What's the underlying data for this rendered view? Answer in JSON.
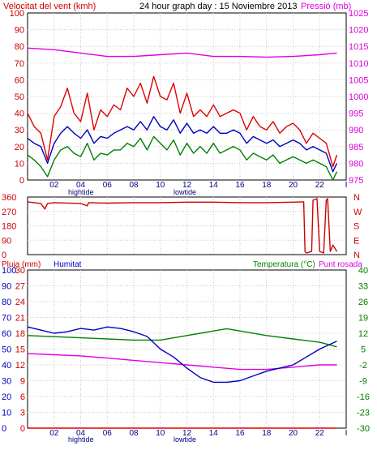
{
  "header": {
    "left_title": "Velocitat del vent (kmh)",
    "center_title": "24 hour graph day : 15 Noviembre 2013",
    "right_title": "Pressió (mb)"
  },
  "labels": {
    "hightide": "hightide",
    "lowtide": "lowtide",
    "pluja": "Pluja (mm)",
    "humitat": "Humitat",
    "temperatura": "Temperatura (°C)",
    "punt_rosada": "Punt rosada"
  },
  "colors": {
    "wind_gust": "#e00000",
    "wind_avg": "#0000c0",
    "wind_min": "#008000",
    "pressure": "#e000e0",
    "direction": "#cc0000",
    "temperature": "#008000",
    "dewpoint": "#e000e0",
    "humidity": "#0000c0",
    "rain": "#e00000",
    "axis_red": "#cc0000",
    "axis_blue": "#0000c0",
    "axis_green": "#008000"
  },
  "chart_data": [
    {
      "type": "line",
      "x_ticks": [
        "02",
        "04",
        "06",
        "08",
        "10",
        "12",
        "14",
        "16",
        "18",
        "20",
        "22",
        "I"
      ],
      "y_left_ticks": [
        0,
        10,
        20,
        30,
        40,
        50,
        60,
        70,
        80,
        90,
        100
      ],
      "y_right_ticks": [
        975,
        980,
        985,
        990,
        995,
        1000,
        1005,
        1010,
        1015,
        1020,
        1025
      ],
      "ylim_left": [
        0,
        100
      ],
      "ylim_right": [
        975,
        1025
      ],
      "series": [
        {
          "name": "Velocitat del vent",
          "axis": "left",
          "color_key": "wind_gust",
          "x": [
            0.0,
            0.5,
            1.0,
            1.5,
            2.0,
            2.5,
            3.0,
            3.5,
            4.0,
            4.5,
            5.0,
            5.5,
            6.0,
            6.5,
            7.0,
            7.5,
            8.0,
            8.5,
            9.0,
            9.5,
            10.0,
            10.5,
            11.0,
            11.5,
            12.0,
            12.5,
            13.0,
            13.5,
            14.0,
            14.5,
            15.0,
            15.5,
            16.0,
            16.5,
            17.0,
            17.5,
            18.0,
            18.5,
            19.0,
            19.5,
            20.0,
            20.5,
            21.0,
            21.5,
            22.0,
            22.5,
            23.0,
            23.3
          ],
          "y": [
            40,
            32,
            28,
            12,
            38,
            44,
            55,
            40,
            35,
            52,
            30,
            42,
            38,
            45,
            42,
            55,
            50,
            58,
            46,
            62,
            50,
            48,
            58,
            40,
            52,
            38,
            42,
            38,
            45,
            38,
            40,
            42,
            40,
            30,
            38,
            32,
            30,
            35,
            28,
            32,
            34,
            30,
            22,
            28,
            25,
            22,
            8,
            15
          ]
        },
        {
          "name": "",
          "axis": "left",
          "color_key": "wind_avg",
          "x": [
            0.0,
            0.5,
            1.0,
            1.5,
            2.0,
            2.5,
            3.0,
            3.5,
            4.0,
            4.5,
            5.0,
            5.5,
            6.0,
            6.5,
            7.0,
            7.5,
            8.0,
            8.5,
            9.0,
            9.5,
            10.0,
            10.5,
            11.0,
            11.5,
            12.0,
            12.5,
            13.0,
            13.5,
            14.0,
            14.5,
            15.0,
            15.5,
            16.0,
            16.5,
            17.0,
            17.5,
            18.0,
            18.5,
            19.0,
            19.5,
            20.0,
            20.5,
            21.0,
            21.5,
            22.0,
            22.5,
            23.0,
            23.3
          ],
          "y": [
            25,
            22,
            20,
            10,
            22,
            28,
            32,
            28,
            25,
            30,
            22,
            26,
            25,
            28,
            30,
            32,
            30,
            35,
            30,
            38,
            32,
            30,
            36,
            28,
            34,
            28,
            30,
            28,
            32,
            28,
            28,
            30,
            28,
            22,
            26,
            24,
            22,
            24,
            20,
            22,
            24,
            22,
            18,
            20,
            18,
            16,
            5,
            10
          ]
        },
        {
          "name": "",
          "axis": "left",
          "color_key": "wind_min",
          "x": [
            0.0,
            0.5,
            1.0,
            1.5,
            2.0,
            2.5,
            3.0,
            3.5,
            4.0,
            4.5,
            5.0,
            5.5,
            6.0,
            6.5,
            7.0,
            7.5,
            8.0,
            8.5,
            9.0,
            9.5,
            10.0,
            10.5,
            11.0,
            11.5,
            12.0,
            12.5,
            13.0,
            13.5,
            14.0,
            14.5,
            15.0,
            15.5,
            16.0,
            16.5,
            17.0,
            17.5,
            18.0,
            18.5,
            19.0,
            19.5,
            20.0,
            20.5,
            21.0,
            21.5,
            22.0,
            22.5,
            23.0,
            23.3
          ],
          "y": [
            15,
            12,
            8,
            2,
            12,
            18,
            20,
            16,
            14,
            22,
            12,
            16,
            15,
            18,
            18,
            22,
            20,
            25,
            18,
            26,
            22,
            18,
            24,
            15,
            22,
            16,
            20,
            16,
            22,
            16,
            18,
            20,
            18,
            12,
            16,
            14,
            12,
            15,
            10,
            12,
            14,
            12,
            10,
            12,
            10,
            8,
            0,
            5
          ]
        },
        {
          "name": "Pressió",
          "axis": "right",
          "color_key": "pressure",
          "x": [
            0,
            2,
            4,
            6,
            8,
            10,
            12,
            14,
            16,
            18,
            20,
            22,
            23.3
          ],
          "y": [
            1014.5,
            1014.0,
            1013.0,
            1012.0,
            1012.0,
            1012.5,
            1013.0,
            1012.0,
            1012.0,
            1011.8,
            1012.0,
            1012.5,
            1013.0
          ]
        }
      ]
    },
    {
      "type": "line",
      "x_ticks": [
        "02",
        "04",
        "06",
        "08",
        "10",
        "12",
        "14",
        "16",
        "18",
        "20",
        "22",
        "I"
      ],
      "y_left_ticks": [
        0,
        90,
        180,
        270,
        360
      ],
      "y_right_ticks": [
        "N",
        "W",
        "S",
        "E",
        "N"
      ],
      "ylim_left": [
        0,
        360
      ],
      "series": [
        {
          "name": "",
          "axis": "left",
          "color_key": "direction",
          "x": [
            0,
            1,
            1.3,
            1.5,
            2,
            4,
            4.5,
            4.6,
            6,
            8,
            10,
            12,
            14,
            16,
            18,
            20,
            20.8,
            20.9,
            21.0,
            21.4,
            21.5,
            21.8,
            22.0,
            22.3,
            22.5,
            22.6,
            22.8,
            23.0,
            23.3
          ],
          "y": [
            330,
            320,
            285,
            320,
            325,
            320,
            305,
            325,
            322,
            325,
            325,
            328,
            328,
            325,
            325,
            328,
            330,
            20,
            10,
            20,
            340,
            350,
            20,
            10,
            340,
            350,
            20,
            60,
            20
          ]
        }
      ]
    },
    {
      "type": "line",
      "x_ticks": [
        "02",
        "04",
        "06",
        "08",
        "10",
        "12",
        "14",
        "16",
        "18",
        "20",
        "22",
        "I"
      ],
      "y_left_ticks": [
        0,
        10,
        20,
        30,
        40,
        50,
        60,
        70,
        80,
        90,
        100
      ],
      "y_left_ticks_rain": [
        0,
        3,
        6,
        9,
        12,
        15,
        18,
        21,
        24,
        27,
        30
      ],
      "y_right_ticks": [
        40,
        33,
        26,
        19,
        12,
        5,
        -2,
        -9,
        -16,
        -23,
        -30
      ],
      "ylim_left": [
        0,
        100
      ],
      "ylim_right": [
        -30,
        40
      ],
      "series": [
        {
          "name": "Temperatura",
          "axis": "right",
          "color_key": "temperature",
          "x": [
            0,
            2,
            4,
            6,
            8,
            10,
            12,
            14,
            15,
            16,
            18,
            20,
            22,
            23.3
          ],
          "y": [
            11,
            10.5,
            10,
            9.5,
            9,
            9,
            11,
            13,
            14,
            13,
            11,
            9.5,
            8,
            6
          ]
        },
        {
          "name": "Punt rosada",
          "axis": "right",
          "color_key": "dewpoint",
          "x": [
            0,
            2,
            4,
            6,
            8,
            10,
            12,
            14,
            16,
            18,
            20,
            22,
            23.3
          ],
          "y": [
            3,
            2.5,
            2,
            1,
            0,
            -1,
            -2,
            -3,
            -4,
            -4,
            -3,
            -2,
            -2
          ]
        },
        {
          "name": "Humitat",
          "axis": "left",
          "color_key": "humidity",
          "x": [
            0,
            1,
            2,
            3,
            4,
            5,
            6,
            7,
            8,
            9,
            10,
            11,
            12,
            13,
            14,
            15,
            16,
            17,
            18,
            19,
            20,
            21,
            22,
            23.3
          ],
          "y": [
            64,
            62,
            60,
            61,
            63,
            62,
            64,
            63,
            61,
            58,
            50,
            45,
            38,
            32,
            29,
            29,
            30,
            33,
            36,
            38,
            40,
            45,
            50,
            55
          ]
        },
        {
          "name": "Pluja",
          "axis": "left",
          "color_key": "rain",
          "x": [
            0,
            23.3
          ],
          "y": [
            0,
            0
          ]
        }
      ]
    }
  ]
}
